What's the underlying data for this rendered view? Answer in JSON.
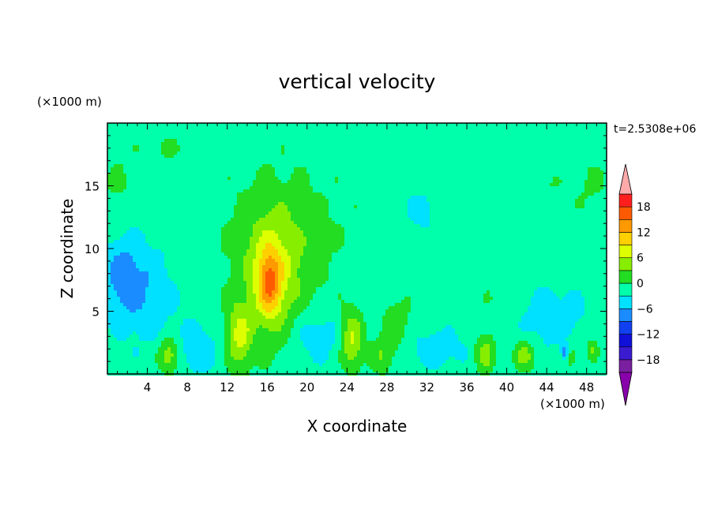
{
  "chart_data": {
    "type": "heatmap",
    "title": "vertical velocity",
    "xlabel": "X coordinate",
    "ylabel": "Z coordinate",
    "x_unit": "(×1000 m)",
    "y_unit": "(×1000 m)",
    "time_label": "t=2.5308e+06",
    "xlim": [
      0,
      50
    ],
    "ylim": [
      0,
      20
    ],
    "x_ticks": [
      "4",
      "8",
      "12",
      "16",
      "20",
      "24",
      "28",
      "32",
      "36",
      "40",
      "44",
      "48"
    ],
    "y_ticks": [
      "5",
      "10",
      "15"
    ],
    "colorbar": {
      "ticks": [
        "18",
        "12",
        "6",
        "0",
        "−6",
        "−12",
        "−18"
      ],
      "tick_values": [
        18,
        12,
        6,
        0,
        -6,
        -12,
        -18
      ],
      "range": [
        -21,
        21
      ],
      "levels": [
        {
          "from": -21,
          "to": -18,
          "color": "#7a1fa0"
        },
        {
          "from": -18,
          "to": -15,
          "color": "#3a1bd0"
        },
        {
          "from": -15,
          "to": -12,
          "color": "#1010d8"
        },
        {
          "from": -12,
          "to": -9,
          "color": "#1040f0"
        },
        {
          "from": -9,
          "to": -6,
          "color": "#1a8cff"
        },
        {
          "from": -6,
          "to": -3,
          "color": "#00e0ff"
        },
        {
          "from": -3,
          "to": 0,
          "color": "#00ffaa"
        },
        {
          "from": 0,
          "to": 3,
          "color": "#22dd22"
        },
        {
          "from": 3,
          "to": 6,
          "color": "#88ee00"
        },
        {
          "from": 6,
          "to": 9,
          "color": "#ddff00"
        },
        {
          "from": 9,
          "to": 12,
          "color": "#ffd000"
        },
        {
          "from": 12,
          "to": 15,
          "color": "#ff9900"
        },
        {
          "from": 15,
          "to": 18,
          "color": "#ff5a00"
        },
        {
          "from": 18,
          "to": 21,
          "color": "#ff1e1e"
        }
      ],
      "over_color": "#ffaaaa",
      "under_color": "#8800aa"
    },
    "background_color": "#00ff99",
    "features": [
      {
        "x": 16.5,
        "z": 7.5,
        "rx": 2.6,
        "rz": 5.5,
        "w": 5
      },
      {
        "x": 16.2,
        "z": 7.2,
        "rx": 1.2,
        "rz": 2.6,
        "w": 10
      },
      {
        "x": 18,
        "z": 12,
        "rx": 7.5,
        "rz": 6,
        "w": 1.6
      },
      {
        "x": 17,
        "z": 9,
        "rx": 4.5,
        "rz": 4.5,
        "w": 3
      },
      {
        "x": 13.2,
        "z": 3,
        "rx": 1.3,
        "rz": 2.6,
        "w": 8
      },
      {
        "x": 24.5,
        "z": 2.7,
        "rx": 1.1,
        "rz": 2.3,
        "w": 8
      },
      {
        "x": 6.2,
        "z": 1.5,
        "rx": 1.1,
        "rz": 1.4,
        "w": 7
      },
      {
        "x": 37.8,
        "z": 1.6,
        "rx": 1,
        "rz": 1.6,
        "w": 6
      },
      {
        "x": 41.8,
        "z": 1.5,
        "rx": 1.1,
        "rz": 1.2,
        "w": 6
      },
      {
        "x": 29,
        "z": 4,
        "rx": 1.6,
        "rz": 2.5,
        "w": 3
      },
      {
        "x": 27.5,
        "z": 1.5,
        "rx": 1.2,
        "rz": 1.5,
        "w": 4
      },
      {
        "x": 46.5,
        "z": 1.5,
        "rx": 1,
        "rz": 1.2,
        "w": 3
      },
      {
        "x": 48.6,
        "z": 2,
        "rx": 0.6,
        "rz": 0.8,
        "w": 5
      },
      {
        "x": 5.5,
        "z": 18,
        "rx": 2.5,
        "rz": 1.2,
        "w": 1.8
      },
      {
        "x": 1,
        "z": 15,
        "rx": 1.8,
        "rz": 3,
        "w": 1.8
      },
      {
        "x": 48.5,
        "z": 15,
        "rx": 2.2,
        "rz": 2.5,
        "w": 1.8
      },
      {
        "x": 44,
        "z": 15,
        "rx": 1.5,
        "rz": 1.2,
        "w": 1.5
      },
      {
        "x": 34,
        "z": 13.5,
        "rx": 1,
        "rz": 2,
        "w": 1.6
      },
      {
        "x": 39.5,
        "z": 6,
        "rx": 2.5,
        "rz": 2.5,
        "w": 1.4
      },
      {
        "x": 3.5,
        "z": 6.5,
        "rx": 3.5,
        "rz": 4,
        "w": -4
      },
      {
        "x": 1.5,
        "z": 8,
        "rx": 2,
        "rz": 3,
        "w": -4
      },
      {
        "x": 9,
        "z": 2,
        "rx": 2,
        "rz": 2,
        "w": -4
      },
      {
        "x": 21,
        "z": 3,
        "rx": 2.5,
        "rz": 2,
        "w": -3.5
      },
      {
        "x": 44.5,
        "z": 4.5,
        "rx": 3.5,
        "rz": 2.5,
        "w": -3.5
      },
      {
        "x": 33,
        "z": 2,
        "rx": 3,
        "rz": 1.6,
        "w": -3.3
      },
      {
        "x": 45.8,
        "z": 1.8,
        "rx": 0.35,
        "rz": 0.6,
        "w": -8
      },
      {
        "x": 31.5,
        "z": 13,
        "rx": 1.5,
        "rz": 1.5,
        "w": -3.2
      }
    ]
  }
}
